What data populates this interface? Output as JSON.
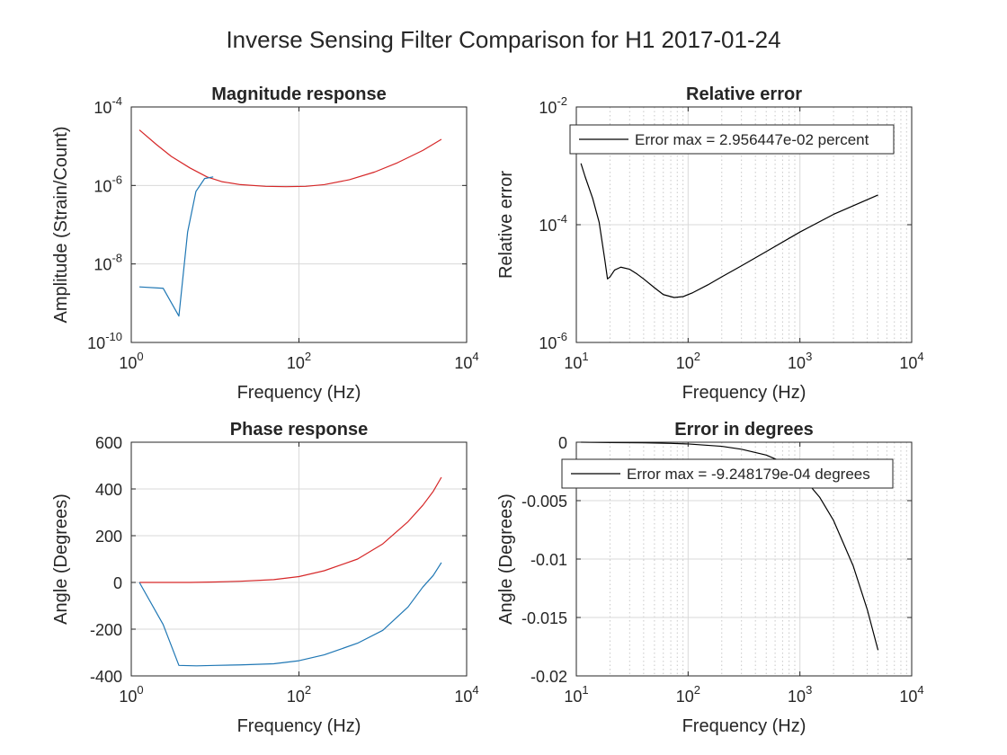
{
  "figure_title": "Inverse Sensing Filter Comparison for H1 2017-01-24",
  "colors": {
    "red_series": "#d62728",
    "blue_series": "#1f77b4",
    "black_series": "#000000",
    "axes": "#262626",
    "grid": "#d9d9d9"
  },
  "chart_data": [
    {
      "id": "magnitude",
      "type": "line",
      "title": "Magnitude response",
      "xlabel": "Frequency (Hz)",
      "ylabel": "Amplitude (Strain/Count)",
      "xscale": "log",
      "yscale": "log",
      "xlim": [
        1,
        10000
      ],
      "ylim": [
        1e-10,
        0.0001
      ],
      "grid": "major",
      "xticks": [
        {
          "base": "10",
          "exp": "0",
          "value": 1
        },
        {
          "base": "10",
          "exp": "2",
          "value": 100
        },
        {
          "base": "10",
          "exp": "4",
          "value": 10000
        }
      ],
      "yticks": [
        {
          "base": "10",
          "exp": "-10",
          "value": 1e-10
        },
        {
          "base": "10",
          "exp": "-8",
          "value": 1e-08
        },
        {
          "base": "10",
          "exp": "-6",
          "value": 1e-06
        },
        {
          "base": "10",
          "exp": "-4",
          "value": 0.0001
        }
      ],
      "series": [
        {
          "color": "red",
          "x": [
            1.25,
            2,
            3,
            5,
            8,
            12,
            20,
            40,
            70,
            120,
            200,
            400,
            800,
            1500,
            3000,
            5000
          ],
          "y": [
            2.6e-05,
            1.1e-05,
            5.5e-06,
            2.8e-06,
            1.65e-06,
            1.25e-06,
            1.05e-06,
            9.5e-07,
            9.3e-07,
            9.5e-07,
            1.05e-06,
            1.4e-06,
            2.2e-06,
            3.8e-06,
            7.8e-06,
            1.5e-05
          ]
        },
        {
          "color": "blue",
          "x": [
            1.25,
            2.4,
            3.7,
            4.7,
            5.9,
            7.5,
            9.5
          ],
          "y": [
            2.6e-09,
            2.4e-09,
            4.7e-10,
            6.5e-08,
            7e-07,
            1.5e-06,
            1.65e-06
          ]
        }
      ]
    },
    {
      "id": "relative_error",
      "type": "line",
      "title": "Relative error",
      "xlabel": "Frequency (Hz)",
      "ylabel": "Relative error",
      "xscale": "log",
      "yscale": "log",
      "xlim": [
        10,
        10000
      ],
      "ylim": [
        1e-06,
        0.01
      ],
      "grid": "major+minor x",
      "legend": {
        "text": "Error max = 2.956447e-02 percent",
        "location": "top"
      },
      "xticks": [
        {
          "base": "10",
          "exp": "1",
          "value": 10
        },
        {
          "base": "10",
          "exp": "2",
          "value": 100
        },
        {
          "base": "10",
          "exp": "3",
          "value": 1000
        },
        {
          "base": "10",
          "exp": "4",
          "value": 10000
        }
      ],
      "yticks": [
        {
          "base": "10",
          "exp": "-6",
          "value": 1e-06
        },
        {
          "base": "10",
          "exp": "-4",
          "value": 0.0001
        },
        {
          "base": "10",
          "exp": "-2",
          "value": 0.01
        }
      ],
      "series": [
        {
          "color": "black",
          "x": [
            11,
            12,
            14,
            16,
            18,
            19,
            20,
            22,
            25,
            30,
            35,
            40,
            50,
            60,
            75,
            90,
            110,
            150,
            200,
            300,
            500,
            1000,
            2000,
            5000
          ],
          "y": [
            0.0011,
            0.00065,
            0.00028,
            0.00011,
            2.5e-05,
            1.2e-05,
            1.3e-05,
            1.7e-05,
            1.9e-05,
            1.75e-05,
            1.45e-05,
            1.2e-05,
            8.5e-06,
            6.5e-06,
            5.8e-06,
            6e-06,
            7e-06,
            9.5e-06,
            1.3e-05,
            2e-05,
            3.5e-05,
            7.5e-05,
            0.00015,
            0.00032
          ]
        }
      ]
    },
    {
      "id": "phase",
      "type": "line",
      "title": "Phase response",
      "xlabel": "Frequency (Hz)",
      "ylabel": "Angle (Degrees)",
      "xscale": "log",
      "yscale": "linear",
      "xlim": [
        1,
        10000
      ],
      "ylim": [
        -400,
        600
      ],
      "grid": "major",
      "xticks": [
        {
          "base": "10",
          "exp": "0",
          "value": 1
        },
        {
          "base": "10",
          "exp": "2",
          "value": 100
        },
        {
          "base": "10",
          "exp": "4",
          "value": 10000
        }
      ],
      "yticks": [
        {
          "label": "-400",
          "value": -400
        },
        {
          "label": "-200",
          "value": -200
        },
        {
          "label": "0",
          "value": 0
        },
        {
          "label": "200",
          "value": 200
        },
        {
          "label": "400",
          "value": 400
        },
        {
          "label": "600",
          "value": 600
        }
      ],
      "series": [
        {
          "color": "red",
          "x": [
            1.25,
            5,
            10,
            20,
            50,
            100,
            200,
            500,
            1000,
            2000,
            3000,
            4000,
            5000
          ],
          "y": [
            0,
            0,
            2,
            5,
            12,
            25,
            50,
            100,
            165,
            260,
            330,
            390,
            450
          ]
        },
        {
          "color": "blue",
          "x": [
            1.25,
            2.4,
            3.7,
            6,
            10,
            20,
            50,
            100,
            200,
            500,
            1000,
            2000,
            3000,
            4000,
            5000
          ],
          "y": [
            0,
            -180,
            -355,
            -357,
            -355,
            -353,
            -348,
            -335,
            -310,
            -260,
            -205,
            -105,
            -20,
            30,
            85
          ]
        }
      ]
    },
    {
      "id": "error_degrees",
      "type": "line",
      "title": "Error in degrees",
      "xlabel": "Frequency (Hz)",
      "ylabel": "Angle (Degrees)",
      "xscale": "log",
      "yscale": "linear",
      "xlim": [
        10,
        10000
      ],
      "ylim": [
        -0.02,
        0
      ],
      "grid": "major+minor x",
      "legend": {
        "text": "Error max = -9.248179e-04 degrees",
        "location": "top"
      },
      "xticks": [
        {
          "base": "10",
          "exp": "1",
          "value": 10
        },
        {
          "base": "10",
          "exp": "2",
          "value": 100
        },
        {
          "base": "10",
          "exp": "3",
          "value": 1000
        },
        {
          "base": "10",
          "exp": "4",
          "value": 10000
        }
      ],
      "yticks": [
        {
          "label": "-0.02",
          "value": -0.02
        },
        {
          "label": "-0.015",
          "value": -0.015
        },
        {
          "label": "-0.01",
          "value": -0.01
        },
        {
          "label": "-0.005",
          "value": -0.005
        },
        {
          "label": "0",
          "value": 0
        }
      ],
      "series": [
        {
          "color": "black",
          "x": [
            11,
            20,
            40,
            70,
            100,
            200,
            300,
            500,
            700,
            1000,
            1500,
            2000,
            3000,
            4000,
            5000
          ],
          "y": [
            0,
            -3e-05,
            -5e-05,
            -0.0001,
            -0.00015,
            -0.00035,
            -0.0006,
            -0.0011,
            -0.0017,
            -0.0027,
            -0.0047,
            -0.0067,
            -0.0106,
            -0.0143,
            -0.0178
          ]
        }
      ]
    }
  ]
}
